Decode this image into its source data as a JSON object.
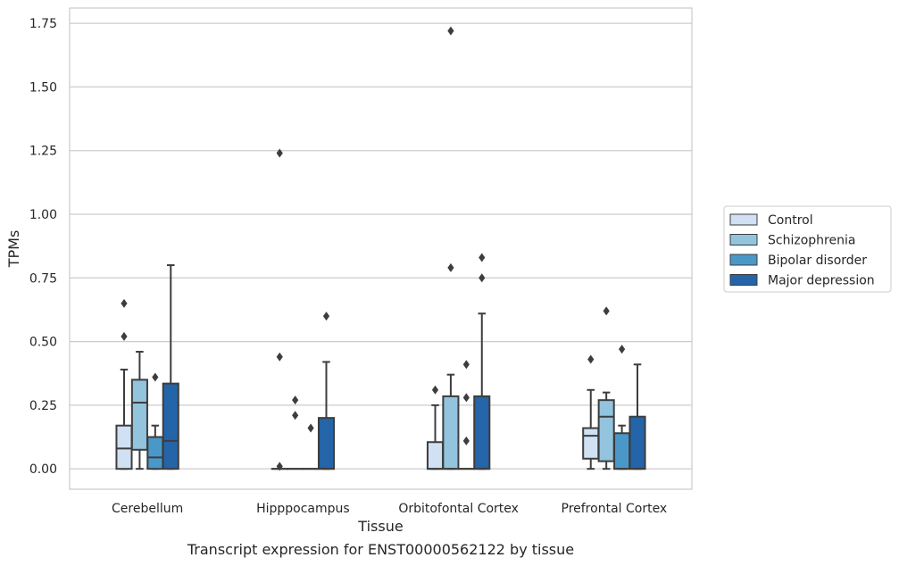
{
  "caption": "Transcript expression for ENST00000562122 by tissue",
  "chart_data": {
    "type": "box",
    "xlabel": "Tissue",
    "ylabel": "TPMs",
    "ylim": [
      -0.08,
      1.81
    ],
    "yticks": [
      0.0,
      0.25,
      0.5,
      0.75,
      1.0,
      1.25,
      1.5,
      1.75
    ],
    "ytick_labels": [
      "0.00",
      "0.25",
      "0.50",
      "0.75",
      "1.00",
      "1.25",
      "1.50",
      "1.75"
    ],
    "grid": true,
    "legend_position": "right",
    "categories": [
      "Cerebellum",
      "Hipppocampus",
      "Orbitofontal Cortex",
      "Prefrontal Cortex"
    ],
    "series": [
      {
        "name": "Control",
        "color": "#cfe1f2",
        "boxes": [
          {
            "low": 0.0,
            "q1": 0.0,
            "median": 0.08,
            "q3": 0.17,
            "high": 0.39,
            "outliers": [
              0.52,
              0.65
            ]
          },
          {
            "low": 0.0,
            "q1": 0.0,
            "median": 0.0,
            "q3": 0.0,
            "high": 0.0,
            "outliers": [
              0.01,
              0.44,
              1.24
            ]
          },
          {
            "low": 0.0,
            "q1": 0.0,
            "median": 0.0,
            "q3": 0.105,
            "high": 0.25,
            "outliers": [
              0.31
            ]
          },
          {
            "low": 0.0,
            "q1": 0.04,
            "median": 0.13,
            "q3": 0.16,
            "high": 0.31,
            "outliers": [
              0.43
            ]
          }
        ]
      },
      {
        "name": "Schizophrenia",
        "color": "#93c4de",
        "boxes": [
          {
            "low": 0.0,
            "q1": 0.075,
            "median": 0.26,
            "q3": 0.35,
            "high": 0.46,
            "outliers": []
          },
          {
            "low": 0.0,
            "q1": 0.0,
            "median": 0.0,
            "q3": 0.0,
            "high": 0.0,
            "outliers": [
              0.21,
              0.27
            ]
          },
          {
            "low": 0.0,
            "q1": 0.0,
            "median": 0.0,
            "q3": 0.285,
            "high": 0.37,
            "outliers": [
              0.79,
              1.72
            ]
          },
          {
            "low": 0.0,
            "q1": 0.03,
            "median": 0.205,
            "q3": 0.27,
            "high": 0.3,
            "outliers": [
              0.62
            ]
          }
        ]
      },
      {
        "name": "Bipolar disorder",
        "color": "#4a98c9",
        "boxes": [
          {
            "low": 0.0,
            "q1": 0.0,
            "median": 0.045,
            "q3": 0.125,
            "high": 0.17,
            "outliers": [
              0.36
            ]
          },
          {
            "low": 0.0,
            "q1": 0.0,
            "median": 0.0,
            "q3": 0.0,
            "high": 0.0,
            "outliers": [
              0.16
            ]
          },
          {
            "low": 0.0,
            "q1": 0.0,
            "median": 0.0,
            "q3": 0.0,
            "high": 0.0,
            "outliers": [
              0.11,
              0.28,
              0.41
            ]
          },
          {
            "low": 0.0,
            "q1": 0.0,
            "median": 0.0,
            "q3": 0.14,
            "high": 0.17,
            "outliers": [
              0.47
            ]
          }
        ]
      },
      {
        "name": "Major depression",
        "color": "#2464a8",
        "boxes": [
          {
            "low": 0.0,
            "q1": 0.0,
            "median": 0.11,
            "q3": 0.335,
            "high": 0.8,
            "outliers": []
          },
          {
            "low": 0.0,
            "q1": 0.0,
            "median": 0.0,
            "q3": 0.2,
            "high": 0.42,
            "outliers": [
              0.6
            ]
          },
          {
            "low": 0.0,
            "q1": 0.0,
            "median": 0.0,
            "q3": 0.285,
            "high": 0.61,
            "outliers": [
              0.75,
              0.83
            ]
          },
          {
            "low": 0.0,
            "q1": 0.0,
            "median": 0.0,
            "q3": 0.205,
            "high": 0.41,
            "outliers": []
          }
        ]
      }
    ]
  }
}
